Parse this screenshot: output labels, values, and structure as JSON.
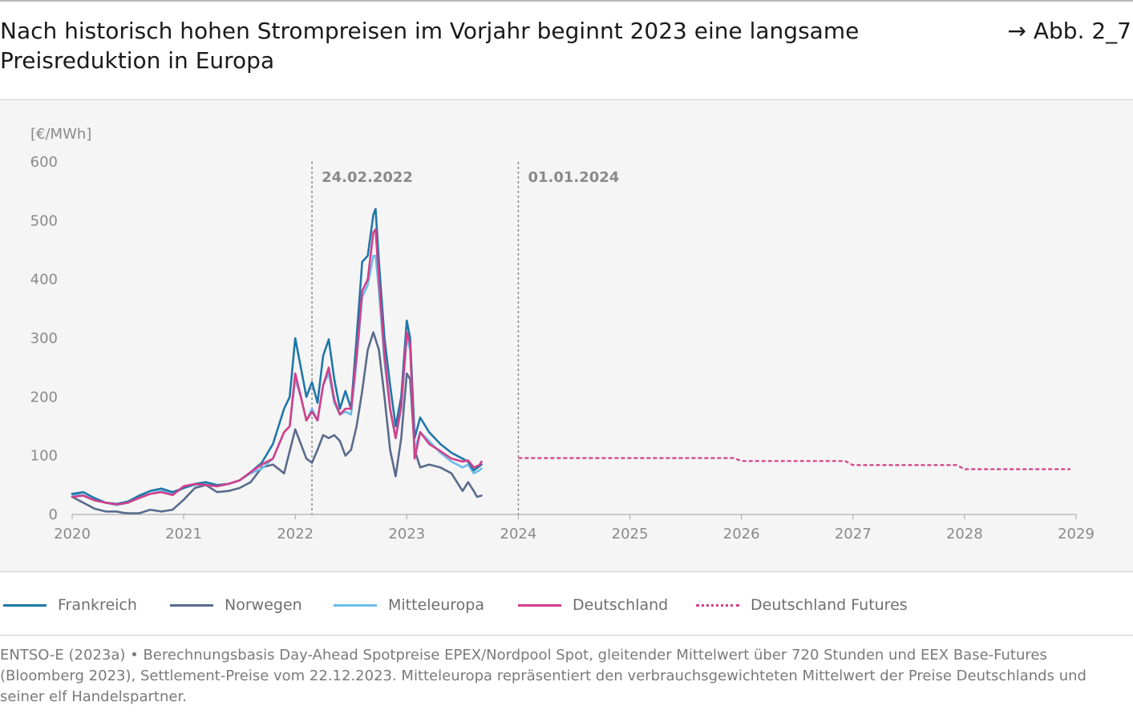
{
  "header": {
    "title": "Nach historisch hohen Strompreisen im Vorjahr beginnt 2023 eine langsame Preisreduktion in Europa",
    "figure_ref": "→ Abb. 2_7"
  },
  "source": "ENTSO-E (2023a) • Berechnungsbasis Day-Ahead Spotpreise EPEX/Nordpool Spot, gleitender Mittelwert über 720 Stunden und EEX Base-Futures (Bloomberg 2023), Settlement-Preise vom 22.12.2023. Mitteleuropa repräsentiert den verbrauchsgewichteten Mittelwert der Preise Deutschlands und seiner elf Handelspartner.",
  "chart_data": {
    "type": "line",
    "title": "Nach historisch hohen Strompreisen im Vorjahr beginnt 2023 eine langsame Preisreduktion in Europa",
    "ylabel": "[€/MWh]",
    "xlabel": "",
    "xlim": [
      2020,
      2029
    ],
    "ylim": [
      0,
      600
    ],
    "x_ticks": [
      "2020",
      "2021",
      "2022",
      "2023",
      "2024",
      "2025",
      "2026",
      "2027",
      "2028",
      "2029"
    ],
    "y_ticks": [
      "0",
      "100",
      "200",
      "300",
      "400",
      "500",
      "600"
    ],
    "grid": false,
    "legend_position": "bottom",
    "annotations": [
      {
        "x": 2022.15,
        "label": "24.02.2022"
      },
      {
        "x": 2024.0,
        "label": "01.01.2024"
      }
    ],
    "series": [
      {
        "name": "Frankreich",
        "color": "#1f77a8",
        "style": "solid",
        "points": [
          [
            2020.0,
            35
          ],
          [
            2020.1,
            38
          ],
          [
            2020.2,
            28
          ],
          [
            2020.3,
            20
          ],
          [
            2020.4,
            18
          ],
          [
            2020.5,
            22
          ],
          [
            2020.6,
            32
          ],
          [
            2020.7,
            40
          ],
          [
            2020.8,
            44
          ],
          [
            2020.9,
            38
          ],
          [
            2021.0,
            45
          ],
          [
            2021.1,
            52
          ],
          [
            2021.2,
            55
          ],
          [
            2021.3,
            50
          ],
          [
            2021.4,
            52
          ],
          [
            2021.5,
            58
          ],
          [
            2021.6,
            72
          ],
          [
            2021.7,
            88
          ],
          [
            2021.8,
            120
          ],
          [
            2021.9,
            180
          ],
          [
            2021.95,
            200
          ],
          [
            2022.0,
            300
          ],
          [
            2022.05,
            250
          ],
          [
            2022.1,
            200
          ],
          [
            2022.15,
            225
          ],
          [
            2022.2,
            190
          ],
          [
            2022.25,
            270
          ],
          [
            2022.3,
            298
          ],
          [
            2022.35,
            230
          ],
          [
            2022.4,
            180
          ],
          [
            2022.45,
            210
          ],
          [
            2022.5,
            180
          ],
          [
            2022.55,
            300
          ],
          [
            2022.6,
            430
          ],
          [
            2022.65,
            440
          ],
          [
            2022.7,
            510
          ],
          [
            2022.72,
            520
          ],
          [
            2022.75,
            430
          ],
          [
            2022.8,
            300
          ],
          [
            2022.85,
            220
          ],
          [
            2022.9,
            150
          ],
          [
            2022.95,
            200
          ],
          [
            2023.0,
            330
          ],
          [
            2023.03,
            300
          ],
          [
            2023.07,
            130
          ],
          [
            2023.12,
            165
          ],
          [
            2023.2,
            140
          ],
          [
            2023.3,
            120
          ],
          [
            2023.4,
            105
          ],
          [
            2023.5,
            95
          ],
          [
            2023.55,
            90
          ],
          [
            2023.6,
            75
          ],
          [
            2023.65,
            82
          ],
          [
            2023.67,
            85
          ]
        ]
      },
      {
        "name": "Norwegen",
        "color": "#5a6b8c",
        "style": "solid",
        "points": [
          [
            2020.0,
            30
          ],
          [
            2020.1,
            20
          ],
          [
            2020.2,
            10
          ],
          [
            2020.3,
            5
          ],
          [
            2020.4,
            5
          ],
          [
            2020.45,
            3
          ],
          [
            2020.5,
            2
          ],
          [
            2020.6,
            2
          ],
          [
            2020.7,
            8
          ],
          [
            2020.8,
            5
          ],
          [
            2020.9,
            8
          ],
          [
            2021.0,
            25
          ],
          [
            2021.1,
            45
          ],
          [
            2021.2,
            50
          ],
          [
            2021.3,
            38
          ],
          [
            2021.4,
            40
          ],
          [
            2021.5,
            45
          ],
          [
            2021.6,
            55
          ],
          [
            2021.7,
            80
          ],
          [
            2021.8,
            85
          ],
          [
            2021.9,
            70
          ],
          [
            2022.0,
            145
          ],
          [
            2022.05,
            120
          ],
          [
            2022.1,
            95
          ],
          [
            2022.15,
            88
          ],
          [
            2022.2,
            110
          ],
          [
            2022.25,
            135
          ],
          [
            2022.3,
            130
          ],
          [
            2022.35,
            135
          ],
          [
            2022.4,
            125
          ],
          [
            2022.45,
            100
          ],
          [
            2022.5,
            110
          ],
          [
            2022.55,
            150
          ],
          [
            2022.6,
            210
          ],
          [
            2022.65,
            280
          ],
          [
            2022.7,
            310
          ],
          [
            2022.75,
            280
          ],
          [
            2022.8,
            200
          ],
          [
            2022.85,
            110
          ],
          [
            2022.9,
            65
          ],
          [
            2022.95,
            130
          ],
          [
            2023.0,
            240
          ],
          [
            2023.03,
            230
          ],
          [
            2023.07,
            110
          ],
          [
            2023.12,
            80
          ],
          [
            2023.2,
            85
          ],
          [
            2023.3,
            80
          ],
          [
            2023.4,
            70
          ],
          [
            2023.5,
            40
          ],
          [
            2023.55,
            55
          ],
          [
            2023.6,
            40
          ],
          [
            2023.63,
            30
          ],
          [
            2023.67,
            32
          ]
        ]
      },
      {
        "name": "Mitteleuropa",
        "color": "#6bbde8",
        "style": "solid",
        "points": [
          [
            2020.0,
            34
          ],
          [
            2020.1,
            33
          ],
          [
            2020.2,
            25
          ],
          [
            2020.3,
            20
          ],
          [
            2020.4,
            16
          ],
          [
            2020.5,
            20
          ],
          [
            2020.6,
            30
          ],
          [
            2020.7,
            35
          ],
          [
            2020.8,
            40
          ],
          [
            2020.9,
            35
          ],
          [
            2021.0,
            45
          ],
          [
            2021.1,
            50
          ],
          [
            2021.2,
            52
          ],
          [
            2021.3,
            48
          ],
          [
            2021.4,
            52
          ],
          [
            2021.5,
            58
          ],
          [
            2021.6,
            70
          ],
          [
            2021.7,
            78
          ],
          [
            2021.8,
            95
          ],
          [
            2021.9,
            140
          ],
          [
            2021.95,
            150
          ],
          [
            2022.0,
            230
          ],
          [
            2022.05,
            200
          ],
          [
            2022.1,
            160
          ],
          [
            2022.15,
            180
          ],
          [
            2022.2,
            160
          ],
          [
            2022.25,
            220
          ],
          [
            2022.3,
            240
          ],
          [
            2022.35,
            190
          ],
          [
            2022.4,
            170
          ],
          [
            2022.45,
            175
          ],
          [
            2022.5,
            170
          ],
          [
            2022.55,
            260
          ],
          [
            2022.6,
            370
          ],
          [
            2022.65,
            390
          ],
          [
            2022.7,
            440
          ],
          [
            2022.72,
            440
          ],
          [
            2022.75,
            380
          ],
          [
            2022.8,
            260
          ],
          [
            2022.85,
            180
          ],
          [
            2022.9,
            130
          ],
          [
            2022.95,
            180
          ],
          [
            2023.0,
            300
          ],
          [
            2023.03,
            280
          ],
          [
            2023.07,
            110
          ],
          [
            2023.12,
            140
          ],
          [
            2023.2,
            125
          ],
          [
            2023.3,
            105
          ],
          [
            2023.4,
            90
          ],
          [
            2023.5,
            80
          ],
          [
            2023.55,
            85
          ],
          [
            2023.6,
            70
          ],
          [
            2023.65,
            75
          ],
          [
            2023.67,
            78
          ]
        ]
      },
      {
        "name": "Deutschland",
        "color": "#d23f8a",
        "style": "solid",
        "points": [
          [
            2020.0,
            30
          ],
          [
            2020.1,
            32
          ],
          [
            2020.2,
            24
          ],
          [
            2020.3,
            20
          ],
          [
            2020.4,
            17
          ],
          [
            2020.5,
            20
          ],
          [
            2020.6,
            28
          ],
          [
            2020.7,
            35
          ],
          [
            2020.8,
            38
          ],
          [
            2020.9,
            33
          ],
          [
            2021.0,
            48
          ],
          [
            2021.1,
            52
          ],
          [
            2021.2,
            50
          ],
          [
            2021.3,
            48
          ],
          [
            2021.4,
            52
          ],
          [
            2021.5,
            58
          ],
          [
            2021.6,
            72
          ],
          [
            2021.7,
            85
          ],
          [
            2021.8,
            95
          ],
          [
            2021.9,
            140
          ],
          [
            2021.95,
            150
          ],
          [
            2022.0,
            240
          ],
          [
            2022.05,
            200
          ],
          [
            2022.1,
            160
          ],
          [
            2022.15,
            175
          ],
          [
            2022.2,
            160
          ],
          [
            2022.25,
            220
          ],
          [
            2022.3,
            250
          ],
          [
            2022.35,
            195
          ],
          [
            2022.4,
            170
          ],
          [
            2022.45,
            180
          ],
          [
            2022.5,
            180
          ],
          [
            2022.55,
            270
          ],
          [
            2022.6,
            380
          ],
          [
            2022.65,
            400
          ],
          [
            2022.7,
            480
          ],
          [
            2022.72,
            485
          ],
          [
            2022.75,
            400
          ],
          [
            2022.8,
            270
          ],
          [
            2022.85,
            180
          ],
          [
            2022.9,
            130
          ],
          [
            2022.95,
            185
          ],
          [
            2023.0,
            310
          ],
          [
            2023.03,
            290
          ],
          [
            2023.07,
            95
          ],
          [
            2023.12,
            140
          ],
          [
            2023.2,
            120
          ],
          [
            2023.3,
            108
          ],
          [
            2023.4,
            95
          ],
          [
            2023.5,
            90
          ],
          [
            2023.55,
            92
          ],
          [
            2023.6,
            80
          ],
          [
            2023.65,
            84
          ],
          [
            2023.67,
            90
          ]
        ]
      },
      {
        "name": "Deutschland Futures",
        "color": "#d23f8a",
        "style": "dashed",
        "points": [
          [
            2024.0,
            96
          ],
          [
            2025.93,
            96
          ],
          [
            2026.0,
            91
          ],
          [
            2026.93,
            91
          ],
          [
            2027.0,
            84
          ],
          [
            2027.93,
            84
          ],
          [
            2028.0,
            77
          ],
          [
            2028.95,
            77
          ]
        ]
      }
    ]
  }
}
